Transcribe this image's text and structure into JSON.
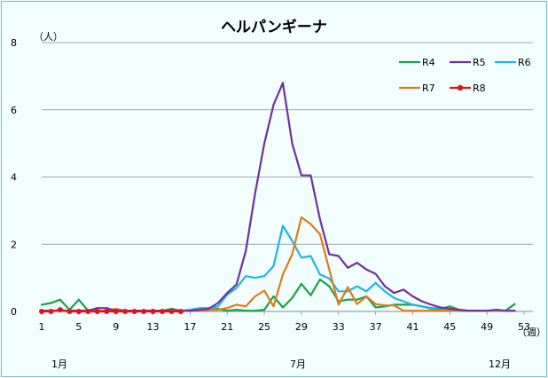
{
  "chart_data": {
    "type": "line",
    "title": "ヘルパンギーナ",
    "ylabel": "（人）",
    "xlabel": "（週）",
    "ylim": [
      0,
      8
    ],
    "xlim": [
      1,
      53
    ],
    "y_ticks": [
      "0",
      "2",
      "4",
      "6",
      "8"
    ],
    "x_ticks": [
      "1",
      "5",
      "9",
      "13",
      "17",
      "21",
      "25",
      "29",
      "33",
      "37",
      "41",
      "45",
      "49",
      "53"
    ],
    "month_labels": [
      "1月",
      "7月",
      "12月"
    ],
    "grid": true,
    "legend_position": "top-right",
    "series": [
      {
        "name": "R4",
        "color": "#1aa24a",
        "marker": false,
        "x": [
          1,
          2,
          3,
          4,
          5,
          6,
          7,
          8,
          9,
          10,
          11,
          12,
          13,
          14,
          15,
          16,
          17,
          18,
          19,
          20,
          21,
          22,
          23,
          24,
          25,
          26,
          27,
          28,
          29,
          30,
          31,
          32,
          33,
          34,
          35,
          36,
          37,
          38,
          39,
          40,
          41,
          42,
          43,
          44,
          45,
          46,
          47,
          48,
          49,
          50,
          51,
          52
        ],
        "values": [
          0.2,
          0.25,
          0.35,
          0.05,
          0.35,
          0.02,
          0.02,
          0.02,
          0.05,
          0.02,
          0.02,
          0.02,
          0.02,
          0.02,
          0.08,
          0.02,
          0.02,
          0.02,
          0.05,
          0.08,
          0.02,
          0.05,
          0.02,
          0.02,
          0.05,
          0.45,
          0.12,
          0.4,
          0.82,
          0.48,
          0.95,
          0.75,
          0.3,
          0.35,
          0.35,
          0.45,
          0.12,
          0.15,
          0.2,
          0.2,
          0.2,
          0.15,
          0.1,
          0.08,
          0.15,
          0.05,
          0.02,
          0.02,
          0.02,
          0.02,
          0.02,
          0.22
        ]
      },
      {
        "name": "R5",
        "color": "#7030a0",
        "marker": false,
        "x": [
          1,
          2,
          3,
          4,
          5,
          6,
          7,
          8,
          9,
          10,
          11,
          12,
          13,
          14,
          15,
          16,
          17,
          18,
          19,
          20,
          21,
          22,
          23,
          24,
          25,
          26,
          27,
          28,
          29,
          30,
          31,
          32,
          33,
          34,
          35,
          36,
          37,
          38,
          39,
          40,
          41,
          42,
          43,
          44,
          45,
          46,
          47,
          48,
          49,
          50,
          51,
          52
        ],
        "values": [
          0.02,
          0.02,
          0.02,
          0.02,
          0.02,
          0.02,
          0.1,
          0.1,
          0.02,
          0.02,
          0.02,
          0.02,
          0.02,
          0.02,
          0.02,
          0.02,
          0.02,
          0.05,
          0.08,
          0.25,
          0.55,
          0.8,
          1.8,
          3.5,
          5.0,
          6.15,
          6.8,
          5.0,
          4.05,
          4.05,
          2.75,
          1.7,
          1.65,
          1.3,
          1.45,
          1.25,
          1.12,
          0.75,
          0.55,
          0.65,
          0.45,
          0.3,
          0.2,
          0.12,
          0.08,
          0.05,
          0.02,
          0.02,
          0.02,
          0.05,
          0.02,
          0.02
        ]
      },
      {
        "name": "R6",
        "color": "#1eb4e6",
        "marker": false,
        "x": [
          1,
          2,
          3,
          4,
          5,
          6,
          7,
          8,
          9,
          10,
          11,
          12,
          13,
          14,
          15,
          16,
          17,
          18,
          19,
          20,
          21,
          22,
          23,
          24,
          25,
          26,
          27,
          28,
          29,
          30,
          31,
          32,
          33,
          34,
          35,
          36,
          37,
          38,
          39,
          40,
          41,
          42,
          43,
          44,
          45,
          46,
          47,
          48,
          49,
          50,
          51,
          52
        ],
        "values": [
          0.02,
          0.02,
          0.02,
          0.02,
          0.02,
          0.02,
          0.02,
          0.02,
          0.02,
          0.02,
          0.02,
          0.02,
          0.02,
          0.02,
          0.02,
          0.02,
          0.05,
          0.1,
          0.1,
          0.15,
          0.5,
          0.7,
          1.05,
          1.0,
          1.05,
          1.35,
          2.55,
          2.1,
          1.6,
          1.65,
          1.1,
          0.98,
          0.6,
          0.6,
          0.75,
          0.6,
          0.85,
          0.6,
          0.4,
          0.3,
          0.2,
          0.15,
          0.08,
          0.05,
          0.02,
          0.02,
          0.02,
          0.02,
          0.02,
          0.02,
          0.02,
          0.02
        ]
      },
      {
        "name": "R7",
        "color": "#e07b1a",
        "marker": false,
        "x": [
          1,
          2,
          3,
          4,
          5,
          6,
          7,
          8,
          9,
          10,
          11,
          12,
          13,
          14,
          15,
          16,
          17,
          18,
          19,
          20,
          21,
          22,
          23,
          24,
          25,
          26,
          27,
          28,
          29,
          30,
          31,
          32,
          33,
          34,
          35,
          36,
          37,
          38,
          39,
          40,
          41,
          42,
          43,
          44,
          45,
          46,
          47,
          48,
          49,
          50,
          51,
          52
        ],
        "values": [
          0.02,
          0.02,
          0.02,
          0.02,
          0.02,
          0.02,
          0.02,
          0.02,
          0.08,
          0.02,
          0.02,
          0.02,
          0.02,
          0.02,
          0.02,
          0.02,
          0.02,
          0.02,
          0.05,
          0.05,
          0.1,
          0.2,
          0.15,
          0.45,
          0.62,
          0.15,
          1.1,
          1.7,
          2.8,
          2.6,
          2.3,
          1.25,
          0.2,
          0.72,
          0.22,
          0.45,
          0.22,
          0.18,
          0.18,
          0.02,
          0.02,
          0.02,
          0.02,
          0.02,
          0.02,
          0.02,
          0.02,
          0.02,
          0.02,
          0.02,
          0.02,
          0.02
        ]
      },
      {
        "name": "R8",
        "color": "#e8101a",
        "marker": true,
        "x": [
          1,
          2,
          3,
          4,
          5,
          6,
          7,
          8,
          9,
          10,
          11,
          12,
          13,
          14,
          15,
          16
        ],
        "values": [
          0.0,
          0.0,
          0.05,
          0.0,
          0.0,
          0.0,
          0.0,
          0.0,
          0.0,
          0.0,
          0.0,
          0.0,
          0.0,
          0.0,
          0.0,
          0.0
        ]
      }
    ]
  }
}
